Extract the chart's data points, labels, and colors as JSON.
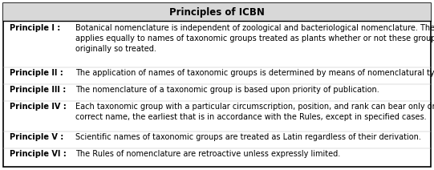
{
  "title": "Principles of ICBN",
  "title_fontsize": 8.5,
  "body_fontsize": 7.0,
  "background_color": "#ffffff",
  "border_color": "#000000",
  "header_bg": "#d8d8d8",
  "rows": [
    {
      "label": "Principle I :",
      "text": "Botanical nomenclature is independent of zoological and bacteriological nomenclature. The Code\napplies equally to names of taxonomic groups treated as plants whether or not these groups were\noriginally so treated."
    },
    {
      "label": "Principle II :",
      "text": "The application of names of taxonomic groups is determined by means of nomenclatural types."
    },
    {
      "label": "Principle III :",
      "text": "The nomenclature of a taxonomic group is based upon priority of publication."
    },
    {
      "label": "Principle IV :",
      "text": "Each taxonomic group with a particular circumscription, position, and rank can bear only one\ncorrect name, the earliest that is in accordance with the Rules, except in specified cases."
    },
    {
      "label": "Principle V :",
      "text": "Scientific names of taxonomic groups are treated as Latin regardless of their derivation."
    },
    {
      "label": "Principle VI :",
      "text": "The Rules of nomenclature are retroactive unless expressly limited."
    }
  ],
  "fig_width": 5.41,
  "fig_height": 2.12,
  "dpi": 100
}
